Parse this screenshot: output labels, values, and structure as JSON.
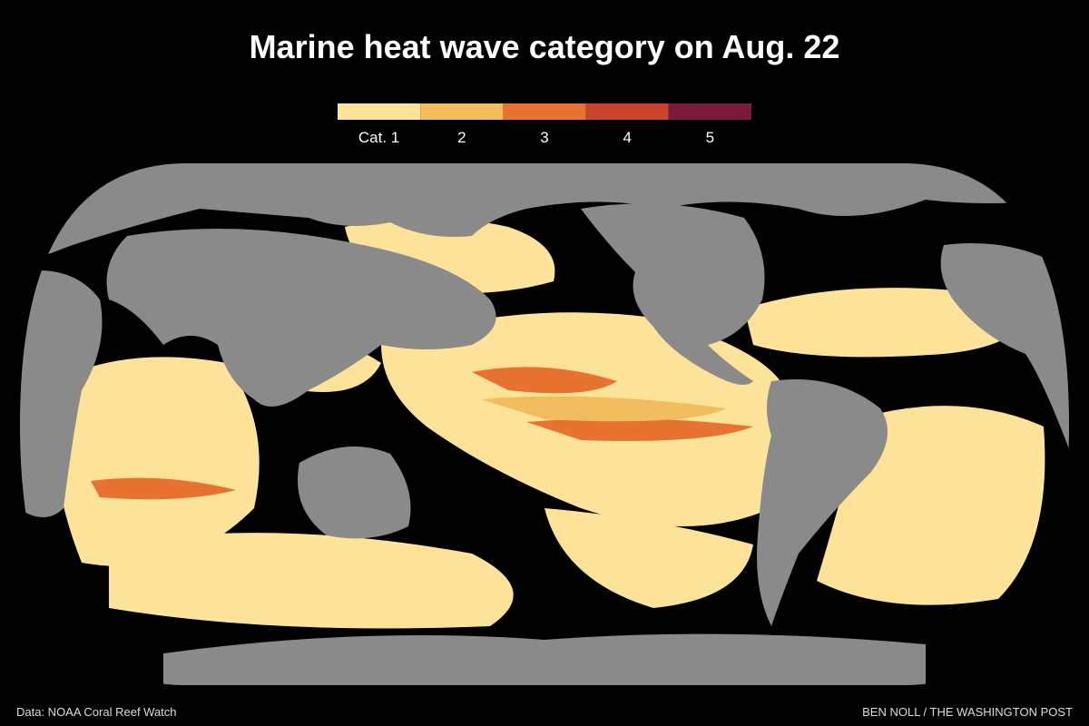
{
  "header": {
    "title": "Marine heat wave category on Aug. 22"
  },
  "legend": {
    "items": [
      {
        "label": "Cat. 1",
        "color": "#fde29a"
      },
      {
        "label": "2",
        "color": "#f2bd5c"
      },
      {
        "label": "3",
        "color": "#e8722f"
      },
      {
        "label": "4",
        "color": "#c8442a"
      },
      {
        "label": "5",
        "color": "#7a1b3b"
      }
    ]
  },
  "footer": {
    "source": "Data: NOAA Coral Reef Watch",
    "credit": "BEN NOLL / THE WASHINGTON POST"
  }
}
